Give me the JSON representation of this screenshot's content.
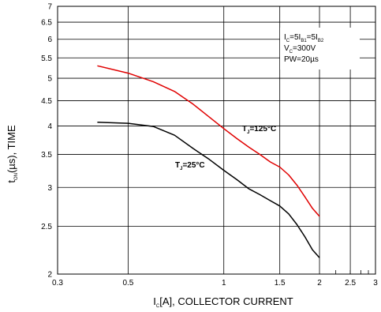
{
  "chart_data": {
    "type": "line",
    "xscale": "log",
    "yscale": "log",
    "xlim": [
      0.3,
      3
    ],
    "ylim": [
      2,
      7
    ],
    "grid": true,
    "x_ticks": [
      {
        "value": 0.3,
        "label": "0.3"
      },
      {
        "value": 0.5,
        "label": "0.5"
      },
      {
        "value": 1,
        "label": "1"
      },
      {
        "value": 1.5,
        "label": "1.5"
      },
      {
        "value": 2,
        "label": "2"
      },
      {
        "value": 2.5,
        "label": "2.5"
      },
      {
        "value": 3,
        "label": "3"
      }
    ],
    "x_minor_ticks": [
      2.25,
      2.5,
      2.7,
      2.85
    ],
    "y_ticks": [
      {
        "value": 2,
        "label": "2"
      },
      {
        "value": 2.5,
        "label": "2.5"
      },
      {
        "value": 3,
        "label": "3"
      },
      {
        "value": 3.5,
        "label": "3.5"
      },
      {
        "value": 4,
        "label": "4"
      },
      {
        "value": 4.5,
        "label": "4.5"
      },
      {
        "value": 5,
        "label": "5"
      },
      {
        "value": 5.5,
        "label": "5.5"
      },
      {
        "value": 6,
        "label": "6"
      },
      {
        "value": 6.5,
        "label": "6.5"
      },
      {
        "value": 7,
        "label": "7"
      }
    ],
    "xlabel": {
      "pre": "I",
      "sub": "C",
      "post": "[A], COLLECTOR CURRENT"
    },
    "ylabel": {
      "pre": "t",
      "sub": "ON",
      "post": "(µs), TIME"
    },
    "series": [
      {
        "color": "#e00000",
        "label": {
          "pre": "T",
          "sub": "J",
          "post": "=125°C"
        },
        "x": [
          0.4,
          0.5,
          0.6,
          0.7,
          0.8,
          0.9,
          1.0,
          1.1,
          1.2,
          1.3,
          1.4,
          1.5,
          1.6,
          1.7,
          1.8,
          1.9,
          2.0
        ],
        "y": [
          5.3,
          5.12,
          4.92,
          4.7,
          4.43,
          4.17,
          3.95,
          3.77,
          3.62,
          3.5,
          3.38,
          3.3,
          3.18,
          3.03,
          2.87,
          2.72,
          2.62
        ]
      },
      {
        "color": "#000000",
        "label": {
          "pre": "T",
          "sub": "J",
          "post": "=25°C"
        },
        "x": [
          0.4,
          0.5,
          0.6,
          0.7,
          0.8,
          0.9,
          1.0,
          1.1,
          1.2,
          1.3,
          1.4,
          1.5,
          1.6,
          1.7,
          1.8,
          1.9,
          2.0
        ],
        "y": [
          4.07,
          4.05,
          3.99,
          3.83,
          3.6,
          3.42,
          3.25,
          3.11,
          2.98,
          2.9,
          2.82,
          2.75,
          2.65,
          2.52,
          2.38,
          2.24,
          2.16
        ]
      }
    ],
    "conditions": [
      {
        "parts": [
          {
            "t": "I"
          },
          {
            "t": "C",
            "sub": true
          },
          {
            "t": "=5I"
          },
          {
            "t": "B1",
            "sub": true
          },
          {
            "t": "=5I"
          },
          {
            "t": "B2",
            "sub": true
          }
        ]
      },
      {
        "parts": [
          {
            "t": "V"
          },
          {
            "t": "C",
            "sub": true
          },
          {
            "t": "=300V"
          }
        ]
      },
      {
        "parts": [
          {
            "t": "PW=20µs"
          }
        ]
      }
    ]
  }
}
